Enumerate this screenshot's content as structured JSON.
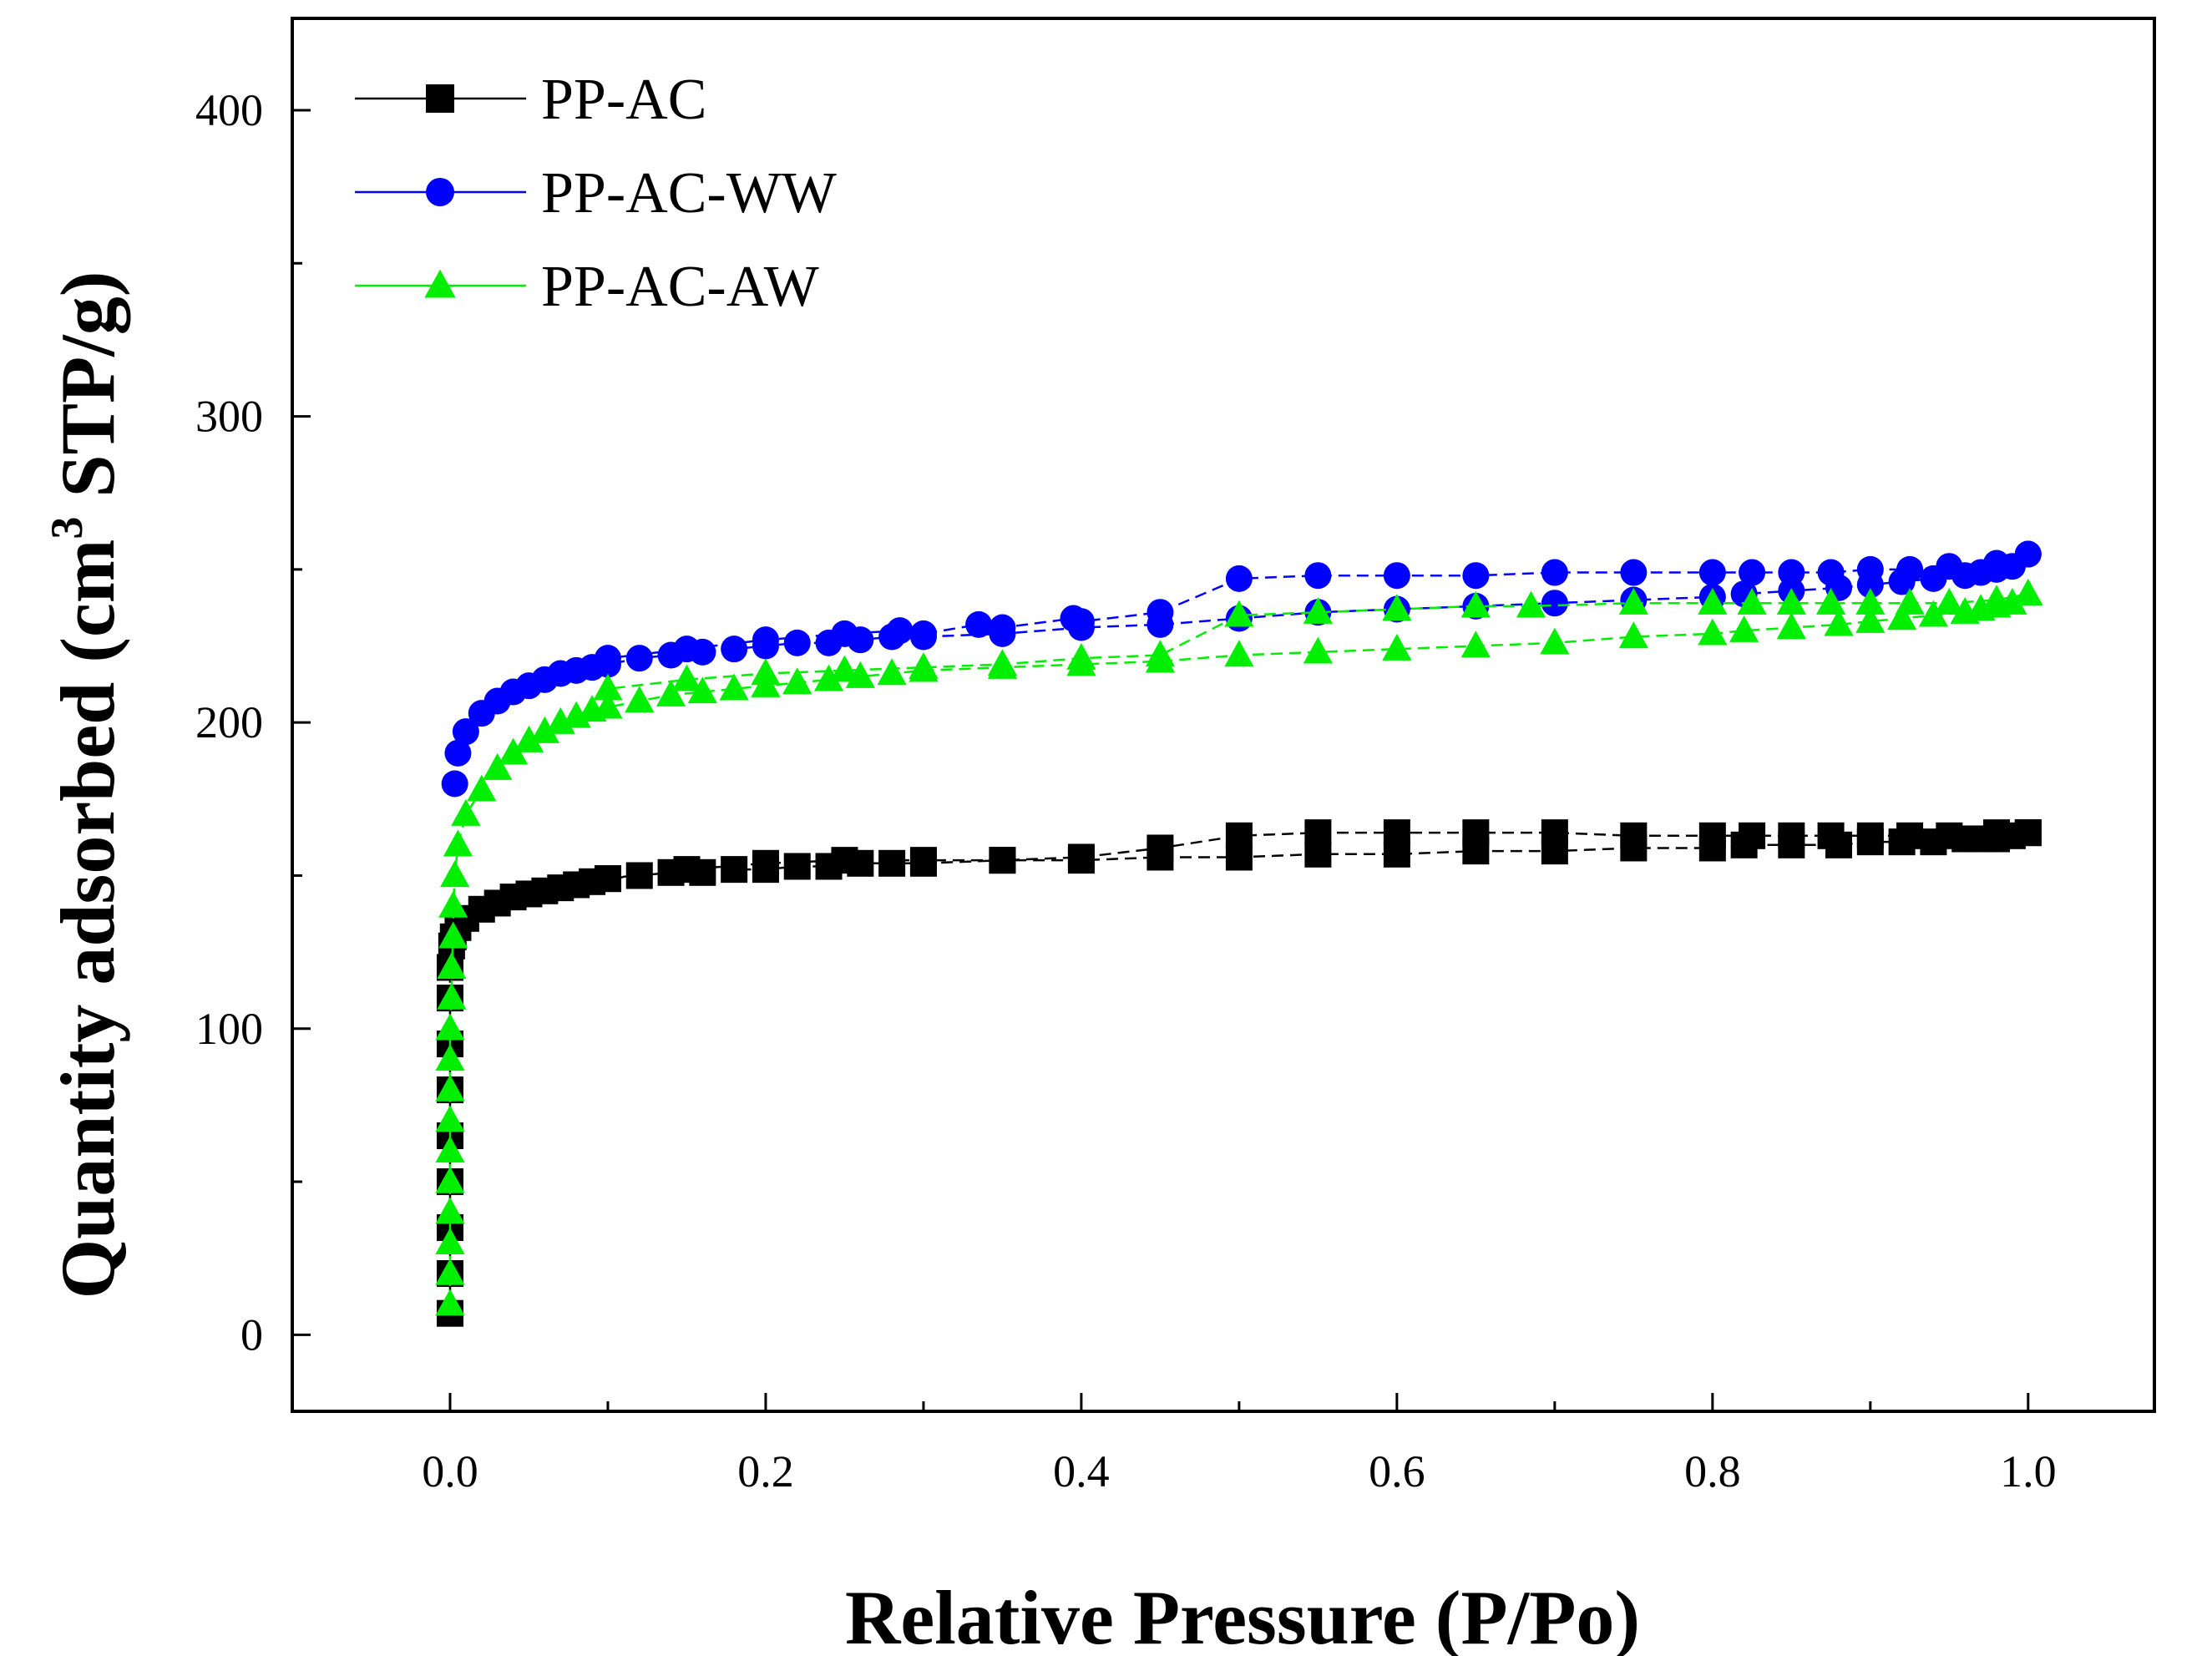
{
  "chart_data": {
    "type": "scatter",
    "title": "",
    "xlabel": "Relative Pressure (P/Po)",
    "ylabel_main": "Quantity adsorbed (cm",
    "ylabel_sup": "3",
    "ylabel_tail": " STP/g)",
    "xlim": [
      -0.1,
      1.08
    ],
    "ylim": [
      -25,
      430
    ],
    "xticks": [
      0.0,
      0.2,
      0.4,
      0.6,
      0.8,
      1.0
    ],
    "xtick_labels": [
      "0.0",
      "0.2",
      "0.4",
      "0.6",
      "0.8",
      "1.0"
    ],
    "yticks": [
      0,
      100,
      200,
      300,
      400
    ],
    "ytick_labels": [
      "0",
      "100",
      "200",
      "300",
      "400"
    ],
    "legend_position": "top-left",
    "series": [
      {
        "name": "PP-AC",
        "color": "#000000",
        "marker": "square",
        "adsorption": {
          "x": [
            0.0,
            0.0,
            0.0,
            0.0,
            0.0,
            0.0,
            0.0,
            0.0,
            0.0,
            0.001,
            0.002,
            0.005,
            0.01,
            0.02,
            0.03,
            0.04,
            0.05,
            0.06,
            0.07,
            0.08,
            0.09,
            0.1,
            0.12,
            0.14,
            0.16,
            0.18,
            0.2,
            0.22,
            0.24,
            0.26,
            0.28,
            0.3,
            0.35,
            0.4,
            0.45,
            0.5,
            0.55,
            0.6,
            0.65,
            0.7,
            0.75,
            0.8,
            0.82,
            0.85,
            0.88,
            0.9,
            0.92,
            0.94,
            0.96,
            0.97,
            0.98,
            0.99,
            1.0
          ],
          "y": [
            7,
            20,
            35,
            50,
            65,
            80,
            95,
            110,
            120,
            127,
            130,
            133,
            136,
            139,
            141,
            143,
            144,
            145,
            146,
            147,
            148,
            149,
            150,
            151,
            151,
            152,
            152,
            153,
            153,
            154,
            154,
            154,
            155,
            155,
            156,
            156,
            157,
            157,
            158,
            158,
            159,
            159,
            160,
            160,
            160,
            161,
            161,
            161,
            162,
            162,
            162,
            163,
            164
          ]
        },
        "desorption": {
          "x": [
            1.0,
            0.98,
            0.95,
            0.925,
            0.9,
            0.875,
            0.85,
            0.825,
            0.8,
            0.75,
            0.7,
            0.65,
            0.6,
            0.55,
            0.5,
            0.45,
            0.4,
            0.35,
            0.3,
            0.25,
            0.2,
            0.15,
            0.1
          ],
          "y": [
            164,
            164,
            163,
            163,
            163,
            163,
            163,
            163,
            163,
            163,
            164,
            164,
            164,
            164,
            163,
            159,
            156,
            155,
            155,
            155,
            154,
            152,
            149
          ]
        }
      },
      {
        "name": "PP-AC-WW",
        "color": "#0000ff",
        "marker": "circle",
        "adsorption": {
          "x": [
            0.003,
            0.005,
            0.01,
            0.02,
            0.03,
            0.04,
            0.05,
            0.06,
            0.07,
            0.08,
            0.09,
            0.1,
            0.12,
            0.14,
            0.16,
            0.18,
            0.2,
            0.22,
            0.24,
            0.26,
            0.28,
            0.3,
            0.35,
            0.4,
            0.45,
            0.5,
            0.55,
            0.6,
            0.65,
            0.7,
            0.75,
            0.8,
            0.82,
            0.85,
            0.88,
            0.9,
            0.92,
            0.94,
            0.96,
            0.97,
            0.98,
            0.99,
            1.0
          ],
          "y": [
            180,
            190,
            197,
            203,
            207,
            210,
            212,
            214,
            216,
            217,
            218,
            219,
            221,
            222,
            223,
            224,
            225,
            226,
            226,
            227,
            228,
            228,
            229,
            231,
            232,
            234,
            236,
            237,
            238,
            239,
            240,
            241,
            242,
            243,
            244,
            245,
            246,
            247,
            248,
            249,
            250,
            251,
            255
          ]
        },
        "desorption": {
          "x": [
            1.0,
            0.98,
            0.95,
            0.925,
            0.9,
            0.875,
            0.85,
            0.825,
            0.8,
            0.75,
            0.7,
            0.65,
            0.6,
            0.55,
            0.5,
            0.45,
            0.4,
            0.395,
            0.35,
            0.335,
            0.3,
            0.285,
            0.25,
            0.2,
            0.15,
            0.1
          ],
          "y": [
            255,
            252,
            251,
            250,
            250,
            249,
            249,
            249,
            249,
            249,
            249,
            248,
            248,
            248,
            247,
            236,
            233,
            234,
            231,
            232,
            229,
            230,
            229,
            227,
            224,
            221
          ]
        }
      },
      {
        "name": "PP-AC-AW",
        "color": "#00ee00",
        "marker": "triangle",
        "adsorption": {
          "x": [
            0.0,
            0.0,
            0.0,
            0.0,
            0.0,
            0.0,
            0.0,
            0.0,
            0.0,
            0.0,
            0.001,
            0.001,
            0.002,
            0.002,
            0.003,
            0.005,
            0.01,
            0.02,
            0.03,
            0.04,
            0.05,
            0.06,
            0.07,
            0.08,
            0.09,
            0.1,
            0.12,
            0.14,
            0.16,
            0.18,
            0.2,
            0.22,
            0.24,
            0.26,
            0.28,
            0.3,
            0.35,
            0.4,
            0.45,
            0.5,
            0.55,
            0.6,
            0.65,
            0.7,
            0.75,
            0.8,
            0.82,
            0.85,
            0.88,
            0.9,
            0.92,
            0.94,
            0.96,
            0.97,
            0.98,
            0.99,
            1.0
          ],
          "y": [
            10,
            20,
            30,
            40,
            50,
            60,
            70,
            80,
            90,
            100,
            110,
            120,
            130,
            140,
            150,
            160,
            170,
            178,
            185,
            190,
            194,
            197,
            200,
            202,
            204,
            205,
            207,
            209,
            210,
            211,
            212,
            213,
            214,
            215,
            216,
            217,
            218,
            219,
            220,
            222,
            223,
            224,
            225,
            226,
            228,
            229,
            230,
            231,
            232,
            233,
            234,
            235,
            236,
            237,
            238,
            239,
            242
          ]
        },
        "desorption": {
          "x": [
            1.0,
            0.98,
            0.95,
            0.925,
            0.9,
            0.875,
            0.85,
            0.825,
            0.8,
            0.75,
            0.685,
            0.65,
            0.6,
            0.55,
            0.5,
            0.45,
            0.4,
            0.35,
            0.3,
            0.25,
            0.2,
            0.15,
            0.1
          ],
          "y": [
            242,
            240,
            239,
            239,
            239,
            239,
            239,
            239,
            239,
            239,
            238,
            238,
            237,
            236,
            235,
            222,
            221,
            219,
            218,
            217,
            216,
            214,
            211
          ]
        }
      }
    ]
  }
}
